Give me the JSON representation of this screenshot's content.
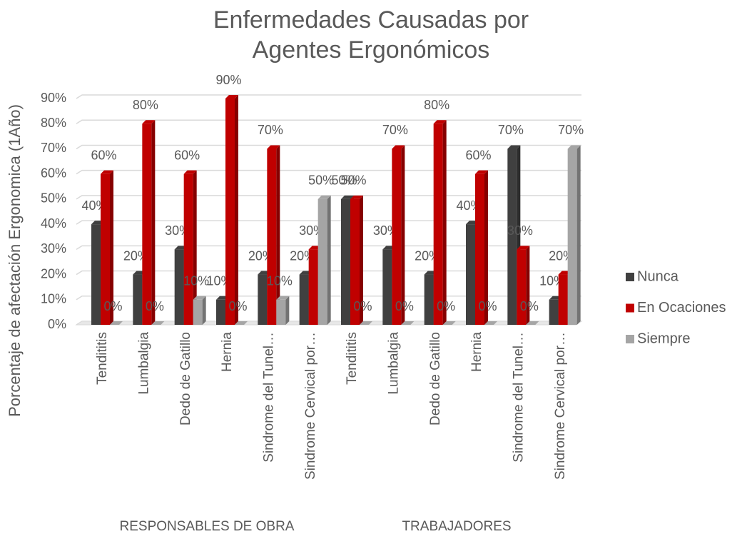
{
  "chart_data": {
    "type": "bar3d",
    "title": [
      "Enfermedades Causadas por",
      "Agentes Ergonómicos"
    ],
    "y_label": "Porcentaje de afectación Ergonomica (1Año)",
    "groups": [
      {
        "name": "RESPONSABLES DE OBRA",
        "categories": [
          "Tendititis",
          "Lumbalgia",
          "Dedo de Gatillo",
          "Hernia",
          "Sindrome del Tunel…",
          "Sindrome Cervical por…"
        ]
      },
      {
        "name": "TRABAJADORES",
        "categories": [
          "Tendititis",
          "Lumbalgia",
          "Dedo de Gatillo",
          "Hernia",
          "Sindrome del Tunel…",
          "Sindrome Cervical por…"
        ]
      }
    ],
    "series": [
      {
        "name": "Nunca",
        "color": "#404040",
        "values": [
          40,
          20,
          30,
          10,
          20,
          20,
          50,
          30,
          20,
          40,
          70,
          10
        ],
        "value_labels": [
          "40%",
          "20%",
          "30%",
          "10%",
          "20%",
          "20%",
          "50%",
          "30%",
          "20%",
          "40%",
          "70%",
          "10%"
        ]
      },
      {
        "name": "En Ocaciones",
        "color": "#c00000",
        "values": [
          60,
          80,
          60,
          90,
          70,
          30,
          50,
          70,
          80,
          60,
          30,
          20
        ],
        "value_labels": [
          "60%",
          "80%",
          "60%",
          "90%",
          "70%",
          "30%",
          "50%",
          "70%",
          "80%",
          "60%",
          "30%",
          "20%"
        ]
      },
      {
        "name": "Siempre",
        "color": "#a5a5a5",
        "values": [
          0,
          0,
          10,
          0,
          10,
          50,
          0,
          0,
          0,
          0,
          0,
          70
        ],
        "value_labels": [
          "0%",
          "0%",
          "10%",
          "0%",
          "10%",
          "50%",
          "0%",
          "0%",
          "0%",
          "0%",
          "0%",
          "70%"
        ]
      }
    ],
    "ylim": [
      0,
      90
    ],
    "yticks": [
      {
        "value": 0,
        "label": "0%"
      },
      {
        "value": 10,
        "label": "10%"
      },
      {
        "value": 20,
        "label": "20%"
      },
      {
        "value": 30,
        "label": "30%"
      },
      {
        "value": 40,
        "label": "40%"
      },
      {
        "value": 50,
        "label": "50%"
      },
      {
        "value": 60,
        "label": "60%"
      },
      {
        "value": 70,
        "label": "70%"
      },
      {
        "value": 80,
        "label": "80%"
      },
      {
        "value": 90,
        "label": "90%"
      }
    ],
    "grid": true,
    "legend": "right"
  }
}
